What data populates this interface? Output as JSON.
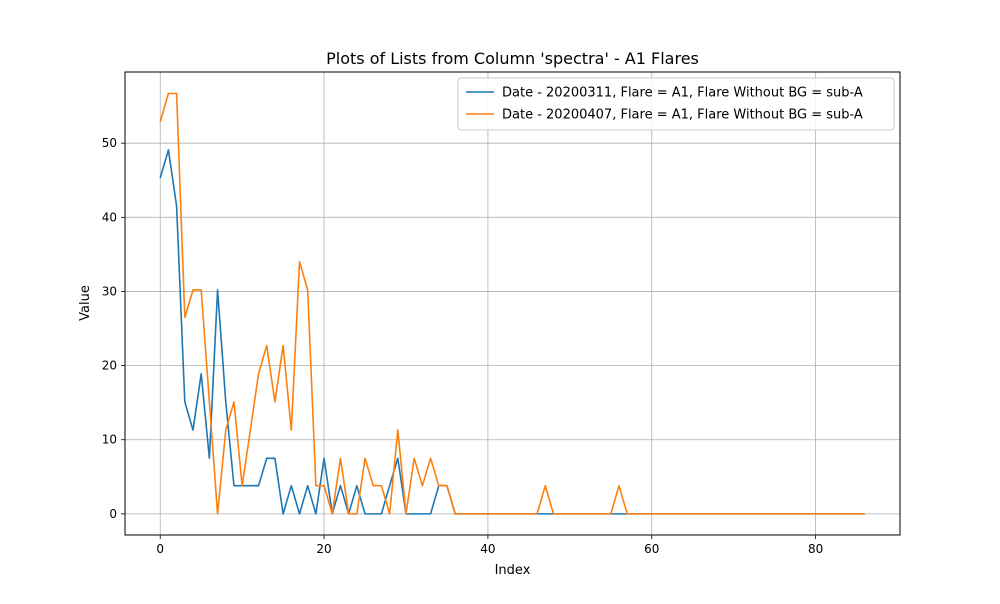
{
  "chart_data": {
    "type": "line",
    "title": "Plots of Lists from Column 'spectra' - A1 Flares",
    "xlabel": "Index",
    "ylabel": "Value",
    "xlim": [
      -4.3,
      90.3
    ],
    "ylim": [
      -2.85,
      59.6
    ],
    "xticks": [
      0,
      20,
      40,
      60,
      80
    ],
    "yticks": [
      0,
      10,
      20,
      30,
      40,
      50
    ],
    "grid": true,
    "legend_position": "top-right",
    "series": [
      {
        "name": "Date - 20200311, Flare = A1, Flare Without BG = sub-A",
        "color": "#1f77b4",
        "x": [
          0,
          1,
          2,
          3,
          4,
          5,
          6,
          7,
          8,
          9,
          10,
          11,
          12,
          13,
          14,
          15,
          16,
          17,
          18,
          19,
          20,
          21,
          22,
          23,
          24,
          25,
          26,
          27,
          28,
          29,
          30,
          31,
          32,
          33,
          34,
          35,
          36,
          37,
          38,
          39,
          40,
          41,
          42,
          43,
          44,
          45,
          46,
          47,
          48,
          49,
          50,
          51,
          52,
          53,
          54,
          55,
          56,
          57,
          58,
          59,
          60,
          61,
          62,
          63,
          64,
          65,
          66,
          67,
          68,
          69,
          70,
          71,
          72,
          73,
          74,
          75,
          76,
          77,
          78,
          79,
          80,
          81,
          82,
          83,
          84,
          85,
          86
        ],
        "values": [
          45.3,
          49.1,
          41.5,
          15.1,
          11.3,
          18.9,
          7.5,
          30.2,
          15.1,
          3.8,
          3.8,
          3.8,
          3.8,
          7.5,
          7.5,
          0,
          3.8,
          0,
          3.8,
          0,
          7.5,
          0,
          3.8,
          0,
          3.8,
          0,
          0,
          0,
          3.8,
          7.5,
          0,
          0,
          0,
          0,
          3.8,
          3.8,
          0,
          0,
          0,
          0,
          0,
          0,
          0,
          0,
          0,
          0,
          0,
          0,
          0,
          0,
          0,
          0,
          0,
          0,
          0,
          0,
          0,
          0,
          0,
          0,
          0,
          0,
          0,
          0,
          0,
          0,
          0,
          0,
          0,
          0,
          0,
          0,
          0,
          0,
          0,
          0,
          0,
          0,
          0,
          0,
          0,
          0,
          0,
          0,
          0,
          0,
          0
        ]
      },
      {
        "name": "Date - 20200407, Flare = A1, Flare Without BG = sub-A",
        "color": "#ff7f0e",
        "x": [
          0,
          1,
          2,
          3,
          4,
          5,
          6,
          7,
          8,
          9,
          10,
          11,
          12,
          13,
          14,
          15,
          16,
          17,
          18,
          19,
          20,
          21,
          22,
          23,
          24,
          25,
          26,
          27,
          28,
          29,
          30,
          31,
          32,
          33,
          34,
          35,
          36,
          37,
          38,
          39,
          40,
          41,
          42,
          43,
          44,
          45,
          46,
          47,
          48,
          49,
          50,
          51,
          52,
          53,
          54,
          55,
          56,
          57,
          58,
          59,
          60,
          61,
          62,
          63,
          64,
          65,
          66,
          67,
          68,
          69,
          70,
          71,
          72,
          73,
          74,
          75,
          76,
          77,
          78,
          79,
          80,
          81,
          82,
          83,
          84,
          85,
          86
        ],
        "values": [
          52.9,
          56.7,
          56.7,
          26.5,
          30.2,
          30.2,
          15.1,
          0,
          11.3,
          15.1,
          3.8,
          11.3,
          18.9,
          22.7,
          15.1,
          22.7,
          11.3,
          34.0,
          30.2,
          3.8,
          3.8,
          0,
          7.5,
          0,
          0,
          7.5,
          3.8,
          3.8,
          0,
          11.3,
          0,
          7.5,
          3.8,
          7.5,
          3.8,
          3.8,
          0,
          0,
          0,
          0,
          0,
          0,
          0,
          0,
          0,
          0,
          0,
          3.8,
          0,
          0,
          0,
          0,
          0,
          0,
          0,
          0,
          3.8,
          0,
          0,
          0,
          0,
          0,
          0,
          0,
          0,
          0,
          0,
          0,
          0,
          0,
          0,
          0,
          0,
          0,
          0,
          0,
          0,
          0,
          0,
          0,
          0,
          0,
          0,
          0,
          0,
          0,
          0
        ]
      }
    ]
  }
}
